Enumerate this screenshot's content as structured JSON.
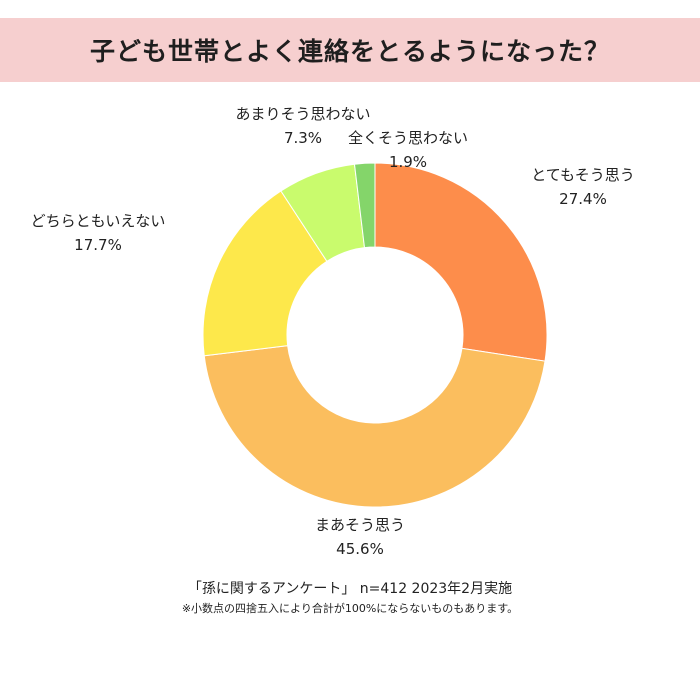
{
  "title": "子ども世帯とよく連絡をとるようになった？",
  "chart_data": {
    "type": "pie",
    "categories": [
      "とてもそう思う",
      "まあそう思う",
      "どちらともいえない",
      "あまりそう思わない",
      "全くそう思わない"
    ],
    "values": [
      27.4,
      45.6,
      17.7,
      7.3,
      1.9
    ],
    "value_labels": [
      "27.4%",
      "45.6%",
      "17.7%",
      "7.3%",
      "1.9%"
    ],
    "colors": [
      "#fd8d4b",
      "#fbbe5e",
      "#fde84b",
      "#c9fb6d",
      "#84d56a"
    ],
    "donut": true
  },
  "footer": {
    "source": "「孫に関するアンケート」 n=412 2023年2月実施",
    "note": "※小数点の四捨五入により合計が100%にならないものもあります。"
  }
}
